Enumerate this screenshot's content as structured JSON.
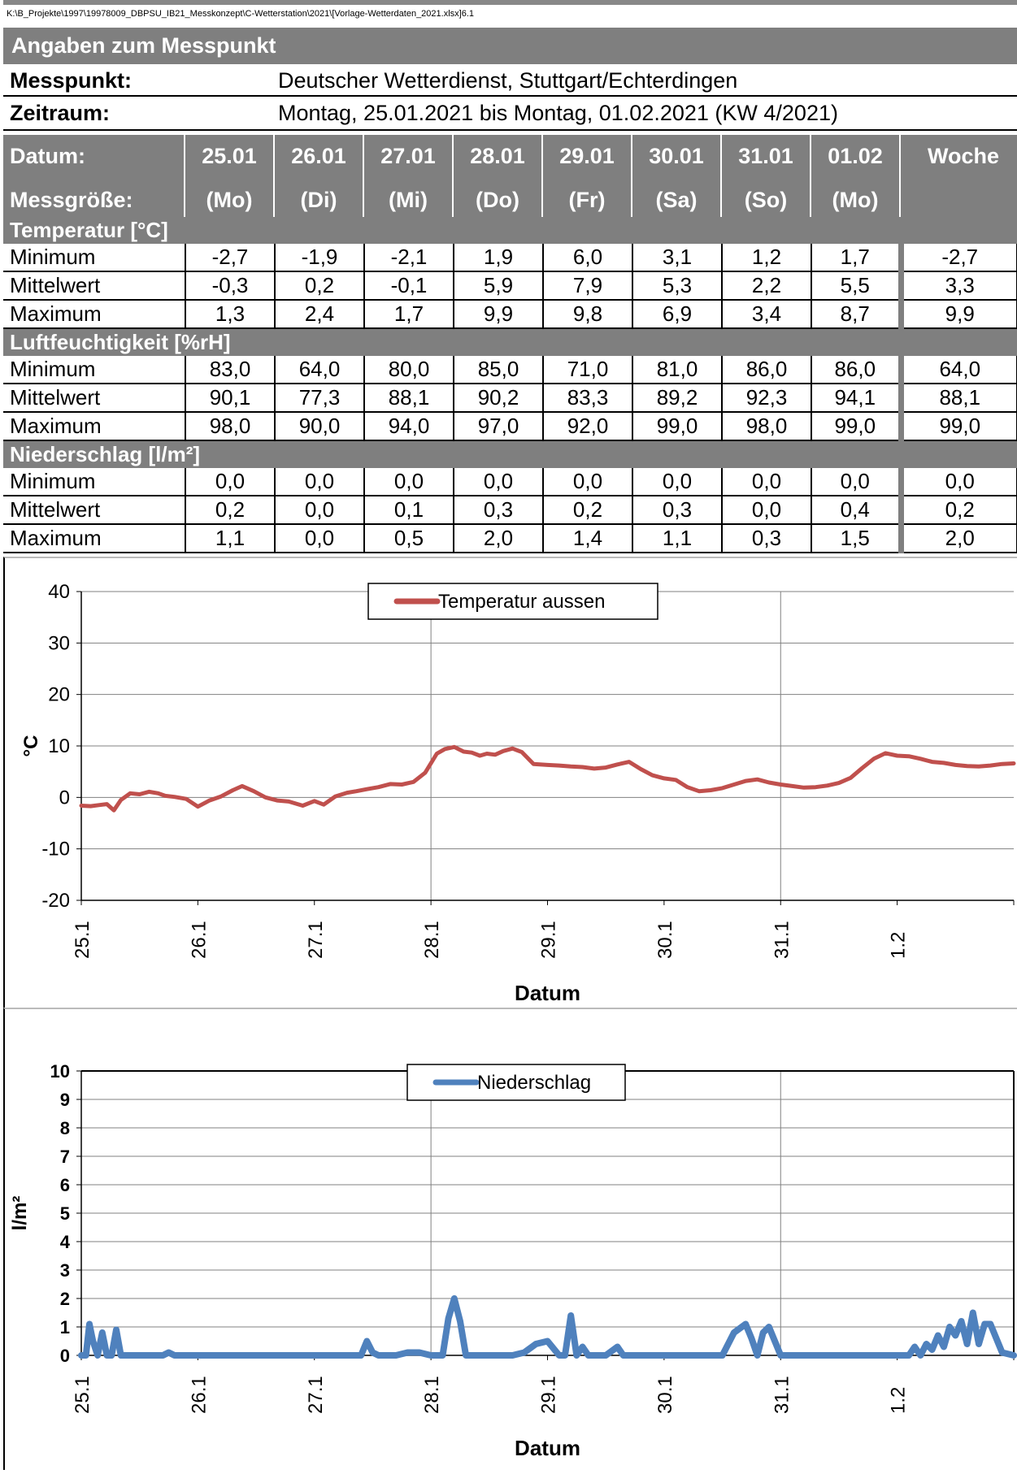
{
  "file_path": "K:\\B_Projekte\\1997\\19978009_DBPSU_IB21_Messkonzept\\C-Wetterstation\\2021\\[Vorlage-Wetterdaten_2021.xlsx]6.1",
  "section_title": "Angaben zum Messpunkt",
  "messpunkt": {
    "label": "Messpunkt:",
    "value": "Deutscher Wetterdienst, Stuttgart/Echterdingen"
  },
  "zeitraum": {
    "label": "Zeitraum:",
    "value": "Montag, 25.01.2021 bis Montag, 01.02.2021 (KW 4/2021)"
  },
  "header": {
    "row1_label": "Datum:",
    "row2_label": "Messgröße:",
    "days": [
      {
        "date": "25.01",
        "dow": "(Mo)"
      },
      {
        "date": "26.01",
        "dow": "(Di)"
      },
      {
        "date": "27.01",
        "dow": "(Mi)"
      },
      {
        "date": "28.01",
        "dow": "(Do)"
      },
      {
        "date": "29.01",
        "dow": "(Fr)"
      },
      {
        "date": "30.01",
        "dow": "(Sa)"
      },
      {
        "date": "31.01",
        "dow": "(So)"
      },
      {
        "date": "01.02",
        "dow": "(Mo)"
      }
    ],
    "week_label": "Woche"
  },
  "sections": [
    {
      "title": "Temperatur [°C]",
      "rows": [
        {
          "name": "Minimum",
          "values": [
            "-2,7",
            "-1,9",
            "-2,1",
            "1,9",
            "6,0",
            "3,1",
            "1,2",
            "1,7"
          ],
          "week": "-2,7"
        },
        {
          "name": "Mittelwert",
          "values": [
            "-0,3",
            "0,2",
            "-0,1",
            "5,9",
            "7,9",
            "5,3",
            "2,2",
            "5,5"
          ],
          "week": "3,3"
        },
        {
          "name": "Maximum",
          "values": [
            "1,3",
            "2,4",
            "1,7",
            "9,9",
            "9,8",
            "6,9",
            "3,4",
            "8,7"
          ],
          "week": "9,9"
        }
      ]
    },
    {
      "title": "Luftfeuchtigkeit [%rH]",
      "rows": [
        {
          "name": "Minimum",
          "values": [
            "83,0",
            "64,0",
            "80,0",
            "85,0",
            "71,0",
            "81,0",
            "86,0",
            "86,0"
          ],
          "week": "64,0"
        },
        {
          "name": "Mittelwert",
          "values": [
            "90,1",
            "77,3",
            "88,1",
            "90,2",
            "83,3",
            "89,2",
            "92,3",
            "94,1"
          ],
          "week": "88,1"
        },
        {
          "name": "Maximum",
          "values": [
            "98,0",
            "90,0",
            "94,0",
            "97,0",
            "92,0",
            "99,0",
            "98,0",
            "99,0"
          ],
          "week": "99,0"
        }
      ]
    },
    {
      "title": "Niederschlag [l/m²]",
      "rows": [
        {
          "name": "Minimum",
          "values": [
            "0,0",
            "0,0",
            "0,0",
            "0,0",
            "0,0",
            "0,0",
            "0,0",
            "0,0"
          ],
          "week": "0,0"
        },
        {
          "name": "Mittelwert",
          "values": [
            "0,2",
            "0,0",
            "0,1",
            "0,3",
            "0,2",
            "0,3",
            "0,0",
            "0,4"
          ],
          "week": "0,2"
        },
        {
          "name": "Maximum",
          "values": [
            "1,1",
            "0,0",
            "0,5",
            "2,0",
            "1,4",
            "1,1",
            "0,3",
            "1,5"
          ],
          "week": "2,0"
        }
      ]
    }
  ],
  "chart_data": [
    {
      "type": "line",
      "legend": "Temperatur aussen",
      "color": "#c0504d",
      "ylabel": "°C",
      "xlabel": "Datum",
      "ylim": [
        -20,
        40
      ],
      "yticks": [
        "-20",
        "-10",
        "0",
        "10",
        "20",
        "30",
        "40"
      ],
      "xlim": [
        0,
        8
      ],
      "xticks": [
        "25.1",
        "26.1",
        "27.1",
        "28.1",
        "29.1",
        "30.1",
        "31.1",
        "1.2"
      ],
      "series": [
        {
          "x": [
            0,
            0.08,
            0.15,
            0.22,
            0.28,
            0.34,
            0.42,
            0.5,
            0.58,
            0.66,
            0.72,
            0.8,
            0.9,
            1.0,
            1.1,
            1.2,
            1.3,
            1.38,
            1.48,
            1.58,
            1.68,
            1.78,
            1.9,
            2.0,
            2.08,
            2.18,
            2.28,
            2.36,
            2.45,
            2.55,
            2.65,
            2.75,
            2.85,
            2.95,
            3.05,
            3.12,
            3.2,
            3.28,
            3.35,
            3.42,
            3.48,
            3.55,
            3.62,
            3.7,
            3.78,
            3.88,
            4.0,
            4.1,
            4.2,
            4.3,
            4.4,
            4.5,
            4.6,
            4.7,
            4.8,
            4.9,
            5.0,
            5.1,
            5.2,
            5.3,
            5.4,
            5.5,
            5.6,
            5.7,
            5.8,
            5.9,
            6.0,
            6.1,
            6.2,
            6.3,
            6.4,
            6.5,
            6.6,
            6.7,
            6.8,
            6.9,
            7.0,
            7.1,
            7.2,
            7.3,
            7.4,
            7.5,
            7.6,
            7.7,
            7.8,
            7.9,
            8.0
          ],
          "y": [
            -1.6,
            -1.7,
            -1.5,
            -1.3,
            -2.5,
            -0.5,
            0.8,
            0.6,
            1.1,
            0.8,
            0.3,
            0.1,
            -0.3,
            -1.8,
            -0.6,
            0.2,
            1.4,
            2.2,
            1.2,
            0.0,
            -0.6,
            -0.8,
            -1.6,
            -0.7,
            -1.4,
            0.2,
            0.9,
            1.2,
            1.6,
            2.0,
            2.6,
            2.5,
            3.0,
            4.8,
            8.5,
            9.4,
            9.8,
            8.9,
            8.7,
            8.1,
            8.5,
            8.3,
            9.0,
            9.5,
            8.8,
            6.5,
            6.3,
            6.2,
            6.0,
            5.9,
            5.6,
            5.8,
            6.4,
            6.9,
            5.5,
            4.3,
            3.7,
            3.4,
            2.0,
            1.2,
            1.4,
            1.8,
            2.5,
            3.2,
            3.5,
            2.9,
            2.5,
            2.2,
            1.9,
            2.0,
            2.3,
            2.8,
            3.8,
            5.7,
            7.5,
            8.6,
            8.1,
            8.0,
            7.5,
            6.9,
            6.7,
            6.3,
            6.1,
            6.0,
            6.2,
            6.5,
            6.6
          ]
        }
      ]
    },
    {
      "type": "line",
      "legend": "Niederschlag",
      "color": "#4f81bd",
      "ylabel": "l/m²",
      "xlabel": "Datum",
      "ylim": [
        0,
        10
      ],
      "yticks": [
        "0",
        "1",
        "2",
        "3",
        "4",
        "5",
        "6",
        "7",
        "8",
        "9",
        "10"
      ],
      "xlim": [
        0,
        8
      ],
      "xticks": [
        "25.1",
        "26.1",
        "27.1",
        "28.1",
        "29.1",
        "30.1",
        "31.1",
        "1.2"
      ],
      "series": [
        {
          "x": [
            0,
            0.04,
            0.07,
            0.1,
            0.14,
            0.18,
            0.22,
            0.26,
            0.3,
            0.34,
            0.38,
            0.42,
            0.46,
            0.5,
            0.55,
            0.7,
            0.75,
            0.8,
            2.4,
            2.45,
            2.5,
            2.55,
            2.6,
            2.7,
            2.8,
            2.9,
            3.0,
            3.1,
            3.15,
            3.2,
            3.25,
            3.3,
            3.35,
            3.4,
            3.45,
            3.5,
            3.6,
            3.7,
            3.8,
            3.9,
            4.0,
            4.1,
            4.15,
            4.2,
            4.25,
            4.3,
            4.35,
            4.5,
            4.6,
            4.65,
            4.7,
            4.75,
            4.8,
            4.9,
            5.0,
            5.1,
            5.2,
            5.3,
            5.4,
            5.5,
            5.6,
            5.7,
            5.75,
            5.8,
            5.85,
            5.9,
            6.0,
            6.1,
            6.2,
            6.3,
            6.4,
            6.6,
            6.8,
            7.0,
            7.1,
            7.15,
            7.2,
            7.25,
            7.3,
            7.35,
            7.4,
            7.45,
            7.5,
            7.55,
            7.6,
            7.65,
            7.7,
            7.75,
            7.8,
            7.85,
            7.9,
            8.0
          ],
          "y": [
            0,
            0,
            1.1,
            0.5,
            0,
            0.8,
            0,
            0,
            0.9,
            0,
            0,
            0,
            0,
            0,
            0,
            0,
            0.1,
            0,
            0,
            0.5,
            0.1,
            0,
            0,
            0,
            0.1,
            0.1,
            0,
            0,
            1.3,
            2.0,
            1.2,
            0,
            0,
            0,
            0,
            0,
            0,
            0,
            0.1,
            0.4,
            0.5,
            0,
            0,
            1.4,
            0,
            0.3,
            0,
            0,
            0.3,
            0,
            0,
            0,
            0,
            0,
            0,
            0,
            0,
            0,
            0,
            0,
            0.8,
            1.1,
            0.6,
            0,
            0.8,
            1.0,
            0,
            0,
            0,
            0,
            0,
            0,
            0,
            0,
            0,
            0.3,
            0,
            0.4,
            0.2,
            0.7,
            0.3,
            1.0,
            0.7,
            1.2,
            0.4,
            1.5,
            0.4,
            1.1,
            1.1,
            0.6,
            0.1,
            0
          ]
        }
      ]
    }
  ]
}
